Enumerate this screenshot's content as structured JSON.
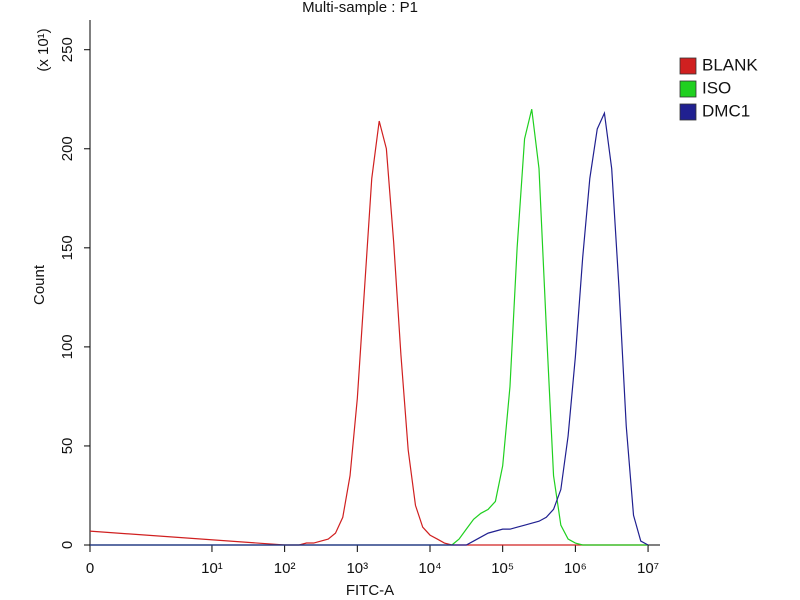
{
  "chart_data": {
    "type": "histogram-overlay",
    "title": "Multi-sample : P1",
    "x_label": "FITC-A",
    "y_label": "Count",
    "y_multiplier": "(x 10¹)",
    "xscale": "biexponential",
    "x": [
      0,
      100,
      126,
      158,
      200,
      251,
      316,
      398,
      501,
      631,
      794,
      1000,
      1260,
      1580,
      2000,
      2510,
      3160,
      3980,
      5010,
      6310,
      7940,
      10000,
      12600,
      15800,
      20000,
      25100,
      31600,
      39800,
      50100,
      63100,
      79400,
      100000,
      126000,
      158000,
      200000,
      251000,
      316000,
      398000,
      501000,
      631000,
      794000,
      1000000,
      1260000,
      1580000,
      2000000,
      2510000,
      3160000,
      3980000,
      5010000,
      6310000,
      7940000,
      10000000
    ],
    "series": [
      {
        "name": "BLANK",
        "color": "#d02020",
        "values": [
          7,
          0,
          0,
          0,
          1,
          1,
          2,
          3,
          6,
          14,
          35,
          74,
          130,
          185,
          214,
          200,
          153,
          96,
          48,
          20,
          9,
          5,
          3,
          1,
          0,
          0,
          0,
          0,
          0,
          0,
          0,
          0,
          0,
          0,
          0,
          0,
          0,
          0,
          0,
          0,
          0,
          0,
          0,
          0,
          0,
          0,
          0,
          0,
          0,
          0,
          0,
          0
        ]
      },
      {
        "name": "ISO",
        "color": "#20d020",
        "values": [
          0,
          0,
          0,
          0,
          0,
          0,
          0,
          0,
          0,
          0,
          0,
          0,
          0,
          0,
          0,
          0,
          0,
          0,
          0,
          0,
          0,
          0,
          0,
          0,
          0,
          3,
          8,
          13,
          16,
          18,
          22,
          40,
          80,
          150,
          205,
          220,
          190,
          110,
          35,
          10,
          3,
          1,
          0,
          0,
          0,
          0,
          0,
          0,
          0,
          0,
          0,
          0
        ]
      },
      {
        "name": "DMC1",
        "color": "#202090",
        "values": [
          0,
          0,
          0,
          0,
          0,
          0,
          0,
          0,
          0,
          0,
          0,
          0,
          0,
          0,
          0,
          0,
          0,
          0,
          0,
          0,
          0,
          0,
          0,
          0,
          0,
          0,
          0,
          2,
          4,
          6,
          7,
          8,
          8,
          9,
          10,
          11,
          12,
          14,
          18,
          28,
          55,
          95,
          145,
          185,
          210,
          218,
          190,
          130,
          60,
          15,
          2,
          0
        ]
      }
    ],
    "xlim": [
      0,
      14600000
    ],
    "xticks": [
      0,
      {
        "value": 10,
        "label": "10¹"
      },
      {
        "value": 100,
        "label": "10²"
      },
      {
        "value": 1000,
        "label": "10³"
      },
      {
        "value": 10000,
        "label": "10⁴"
      },
      {
        "value": 100000,
        "label": "10⁵"
      },
      {
        "value": 1000000,
        "label": "10⁶"
      },
      {
        "value": 10000000,
        "label": "10⁷"
      }
    ],
    "ylim": [
      0,
      265
    ],
    "yticks": [
      0,
      50,
      100,
      150,
      200,
      250
    ],
    "grid": false,
    "legend": "top-right"
  }
}
